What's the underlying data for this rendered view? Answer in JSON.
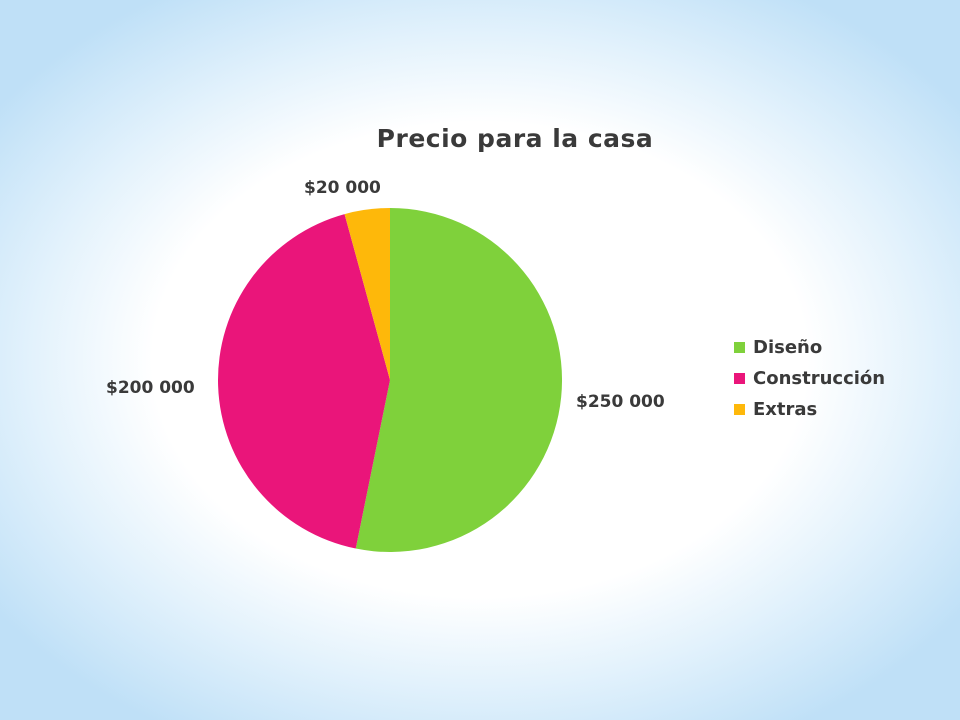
{
  "chart_data": {
    "type": "pie",
    "title": "Precio para la casa",
    "categories": [
      "Diseño",
      "Construcción",
      "Extras"
    ],
    "values": [
      250000,
      200000,
      20000
    ],
    "data_labels": [
      "$250 000",
      "$200 000",
      "$20 000"
    ],
    "colors": [
      "#7fd13b",
      "#ea157a",
      "#feb80a"
    ],
    "legend_position": "right",
    "start_angle_deg": 0,
    "direction": "clockwise"
  }
}
